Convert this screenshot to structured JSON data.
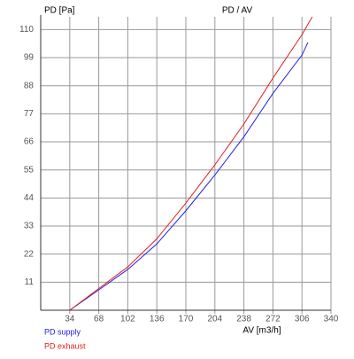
{
  "chart_data": {
    "type": "line",
    "title": "PD / AV",
    "y_label": "PD [Pa]",
    "x_label": "AV [m3/h]",
    "xlim": [
      0,
      340
    ],
    "xticks": [
      34,
      68,
      102,
      136,
      170,
      204,
      238,
      272,
      306,
      340
    ],
    "ylim": [
      0,
      115
    ],
    "yticks": [
      11,
      22,
      33,
      44,
      55,
      66,
      77,
      88,
      99,
      110
    ],
    "grid": true,
    "series": [
      {
        "name": "PD supply",
        "color": "#2020e0",
        "x": [
          34,
          68,
          102,
          136,
          170,
          204,
          238,
          272,
          306,
          313
        ],
        "values": [
          0,
          8,
          16,
          26,
          39,
          53,
          68,
          85,
          100,
          105
        ]
      },
      {
        "name": "PD exhaust",
        "color": "#e02020",
        "x": [
          34,
          68,
          102,
          136,
          170,
          204,
          238,
          272,
          306,
          318
        ],
        "values": [
          0,
          8.5,
          17,
          28,
          42,
          57,
          73,
          91,
          108,
          115
        ]
      }
    ]
  }
}
